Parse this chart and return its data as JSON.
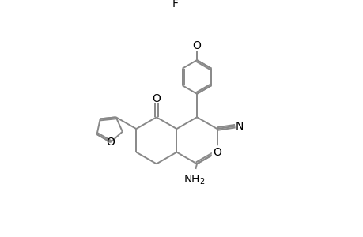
{
  "background_color": "#ffffff",
  "bond_color": "#888888",
  "text_color": "#000000",
  "bond_width": 1.4,
  "figsize": [
    4.6,
    3.0
  ],
  "dpi": 100,
  "xlim": [
    0.0,
    10.0
  ],
  "ylim": [
    0.0,
    7.5
  ]
}
